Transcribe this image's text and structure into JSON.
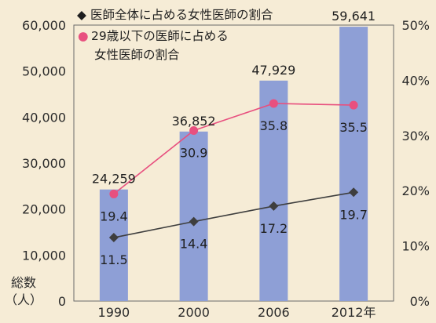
{
  "chart_data": {
    "type": "bar",
    "categories": [
      "1990",
      "2000",
      "2006",
      "2012年"
    ],
    "left_axis": {
      "ticks": [
        "60,000",
        "50,000",
        "40,000",
        "30,000",
        "20,000",
        "10,000",
        "0"
      ],
      "ylim": [
        0,
        60000
      ],
      "label_line1": "総数",
      "label_line2": "（人）"
    },
    "right_axis": {
      "ticks": [
        "50%",
        "40%",
        "30%",
        "20%",
        "10%",
        "0%"
      ],
      "ylim": [
        0,
        50
      ]
    },
    "bars": {
      "values": [
        24259,
        36852,
        47929,
        59641
      ],
      "labels": [
        "24,259",
        "36,852",
        "47,929",
        "59,641"
      ],
      "color": "#8e9fd6"
    },
    "series": [
      {
        "name": "医師全体に占める女性医師の割合",
        "marker": "diamond",
        "color": "#3e3e3e",
        "values": [
          11.5,
          14.4,
          17.2,
          19.7
        ],
        "labels": [
          "11.5",
          "14.4",
          "17.2",
          "19.7"
        ]
      },
      {
        "name_line1": "29歳以下の医師に占める",
        "name_line2": "女性医師の割合",
        "marker": "circle",
        "color": "#e8507f",
        "values": [
          19.4,
          30.9,
          35.8,
          35.5
        ],
        "labels": [
          "19.4",
          "30.9",
          "35.8",
          "35.5"
        ]
      }
    ],
    "legend_glyphs": {
      "diamond": "◆",
      "circle": "●"
    },
    "grid": false,
    "legend_position": "top-left"
  }
}
